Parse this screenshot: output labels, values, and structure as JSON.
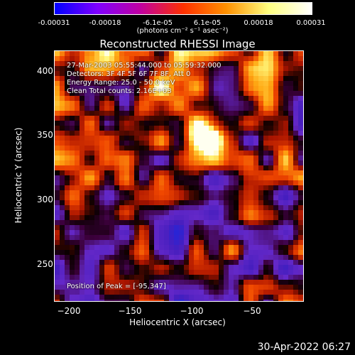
{
  "colorbar": {
    "ticks": [
      "-0.00031",
      "-0.00018",
      "-6.1e-05",
      "6.1e-05",
      "0.00018",
      "0.00031"
    ],
    "units": "(photons cm⁻² s⁻¹ asec⁻²)",
    "colors": [
      "#0000ff",
      "#7f00ff",
      "#c000a0",
      "#ff3000",
      "#ff9000",
      "#ffff80",
      "#ffffff"
    ]
  },
  "title": "Reconstructed RHESSI Image",
  "info": {
    "time": "27-Mar-2003 05:55:44.000 to 05:59:32.000",
    "detectors": "Detectors: 3F 4F 5F 6F 7F 8F, Att 0",
    "energy": "Energy Range: 25.0 - 50.0 keV",
    "clean": "Clean     Total counts: 2.16E+03",
    "peak": "Position of Peak = [-95,347]"
  },
  "axes": {
    "xlabel": "Heliocentric X (arcsec)",
    "ylabel": "Heliocentric Y (arcsec)",
    "xticks": [
      "−200",
      "−150",
      "−100",
      "−50"
    ],
    "yticks": [
      "400",
      "350",
      "300",
      "250"
    ]
  },
  "footer": {
    "date": "30-Apr-2022 06:27"
  }
}
